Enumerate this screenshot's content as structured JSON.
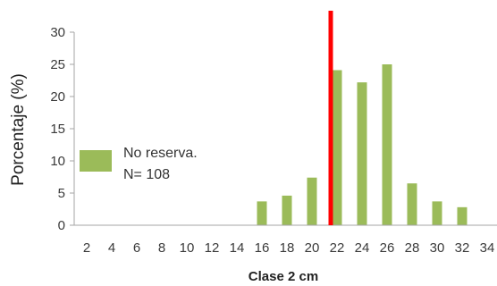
{
  "chart_data": {
    "type": "bar",
    "categories": [
      "2",
      "4",
      "6",
      "8",
      "10",
      "12",
      "14",
      "16",
      "18",
      "20",
      "22",
      "24",
      "26",
      "28",
      "30",
      "32",
      "34"
    ],
    "series": [
      {
        "name": "No reserva.",
        "values": [
          0,
          0,
          0,
          0,
          0,
          0,
          0,
          3.7,
          4.6,
          7.4,
          24.1,
          22.2,
          25.0,
          6.5,
          3.7,
          2.8,
          0
        ],
        "color": "#9bbb59"
      }
    ],
    "xlabel": "Clase 2 cm",
    "ylabel": "Porcentaje (%)",
    "ylim": [
      0,
      30
    ],
    "yticks": [
      0,
      5,
      10,
      15,
      20,
      25,
      30
    ],
    "grid": false,
    "legend": {
      "placement": "center-left",
      "lines": [
        "No reserva.",
        "N= 108"
      ]
    },
    "reference_line": {
      "x": 22,
      "color": "#ff0000"
    }
  }
}
